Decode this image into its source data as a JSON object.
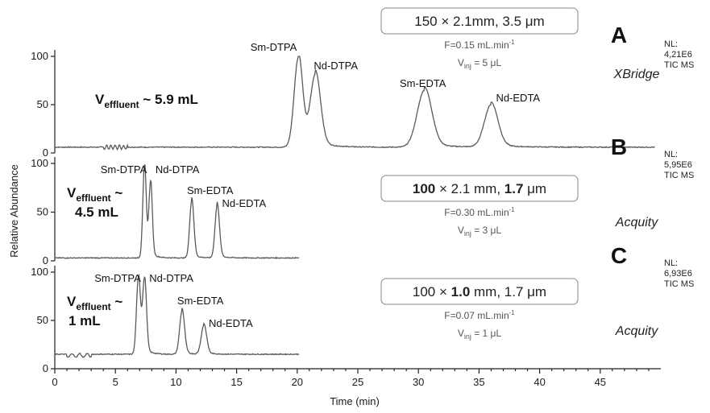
{
  "chart_data": {
    "type": "line",
    "xlabel": "Time (min)",
    "ylabel": "Relative Abundance",
    "xlim": [
      0,
      50
    ],
    "ylim": [
      0,
      100
    ],
    "x_ticks": [
      "0",
      "5",
      "10",
      "15",
      "20",
      "25",
      "30",
      "35",
      "40",
      "45"
    ],
    "y_ticks": [
      "0",
      "50",
      "100"
    ],
    "panels": [
      {
        "letter": "A",
        "column": "XBridge",
        "dims_box": "150 × 2.1mm, 3.5 μm",
        "flow": "F=0.15 mL.min",
        "flow_exp": "-1",
        "inj_prefix": "V",
        "inj_sub": "inj",
        "inj_value": "= 5 μL",
        "nl_label": "NL:",
        "nl_value": "4,21E6",
        "nl_mode": "TIC  MS",
        "veff_prefix": "V",
        "veff_sub": "effluent",
        "veff_value": "~ 5.9 mL",
        "baseline": 6,
        "x_end": 49.5,
        "peaks": [
          {
            "label": "Sm-DTPA",
            "rt": 20.1,
            "height": 99,
            "width": 0.35
          },
          {
            "label": "Nd-DTPA",
            "rt": 21.5,
            "height": 80,
            "width": 0.42
          },
          {
            "label": "Sm-EDTA",
            "rt": 30.5,
            "height": 65,
            "width": 0.6
          },
          {
            "label": "Nd-EDTA",
            "rt": 36.0,
            "height": 50,
            "width": 0.55
          }
        ]
      },
      {
        "letter": "B",
        "column": "Acquity",
        "dims_box_bold1": "100",
        "dims_box_mid": " × 2.1 mm, ",
        "dims_box_bold2": "1.7",
        "dims_box_end": " μm",
        "flow": "F=0.30 mL.min",
        "flow_exp": "-1",
        "inj_prefix": "V",
        "inj_sub": "inj",
        "inj_value": "= 3 μL",
        "nl_label": "NL:",
        "nl_value": "5,95E6",
        "nl_mode": "TIC  MS",
        "veff_prefix": "V",
        "veff_sub": "effluent",
        "veff_tilde": "~",
        "veff_value": "4.5 mL",
        "baseline": 3,
        "x_end": 20.2,
        "peaks": [
          {
            "label": "Sm-DTPA",
            "rt": 7.4,
            "height": 98,
            "width": 0.14
          },
          {
            "label": "Nd-DTPA",
            "rt": 7.9,
            "height": 80,
            "width": 0.14
          },
          {
            "label": "Sm-EDTA",
            "rt": 11.3,
            "height": 62,
            "width": 0.17
          },
          {
            "label": "Nd-EDTA",
            "rt": 13.4,
            "height": 57,
            "width": 0.18
          }
        ]
      },
      {
        "letter": "C",
        "column": "Acquity",
        "dims_box_start": "100 × ",
        "dims_box_bold": "1.0",
        "dims_box_end": " mm, 1.7 μm",
        "flow": "F=0.07 mL.min",
        "flow_exp": "-1",
        "inj_prefix": "V",
        "inj_sub": "inj",
        "inj_value": "= 1 μL",
        "nl_label": "NL:",
        "nl_value": "6,93E6",
        "nl_mode": "TIC  MS",
        "veff_prefix": "V",
        "veff_sub": "effluent",
        "veff_tilde": "~",
        "veff_value": "1 mL",
        "baseline": 15,
        "x_end": 20.2,
        "peaks": [
          {
            "label": "Sm-DTPA",
            "rt": 6.9,
            "height": 95,
            "width": 0.16
          },
          {
            "label": "Nd-DTPA",
            "rt": 7.4,
            "height": 92,
            "width": 0.16
          },
          {
            "label": "Sm-EDTA",
            "rt": 10.5,
            "height": 60,
            "width": 0.2
          },
          {
            "label": "Nd-EDTA",
            "rt": 12.3,
            "height": 45,
            "width": 0.22
          }
        ]
      }
    ]
  }
}
